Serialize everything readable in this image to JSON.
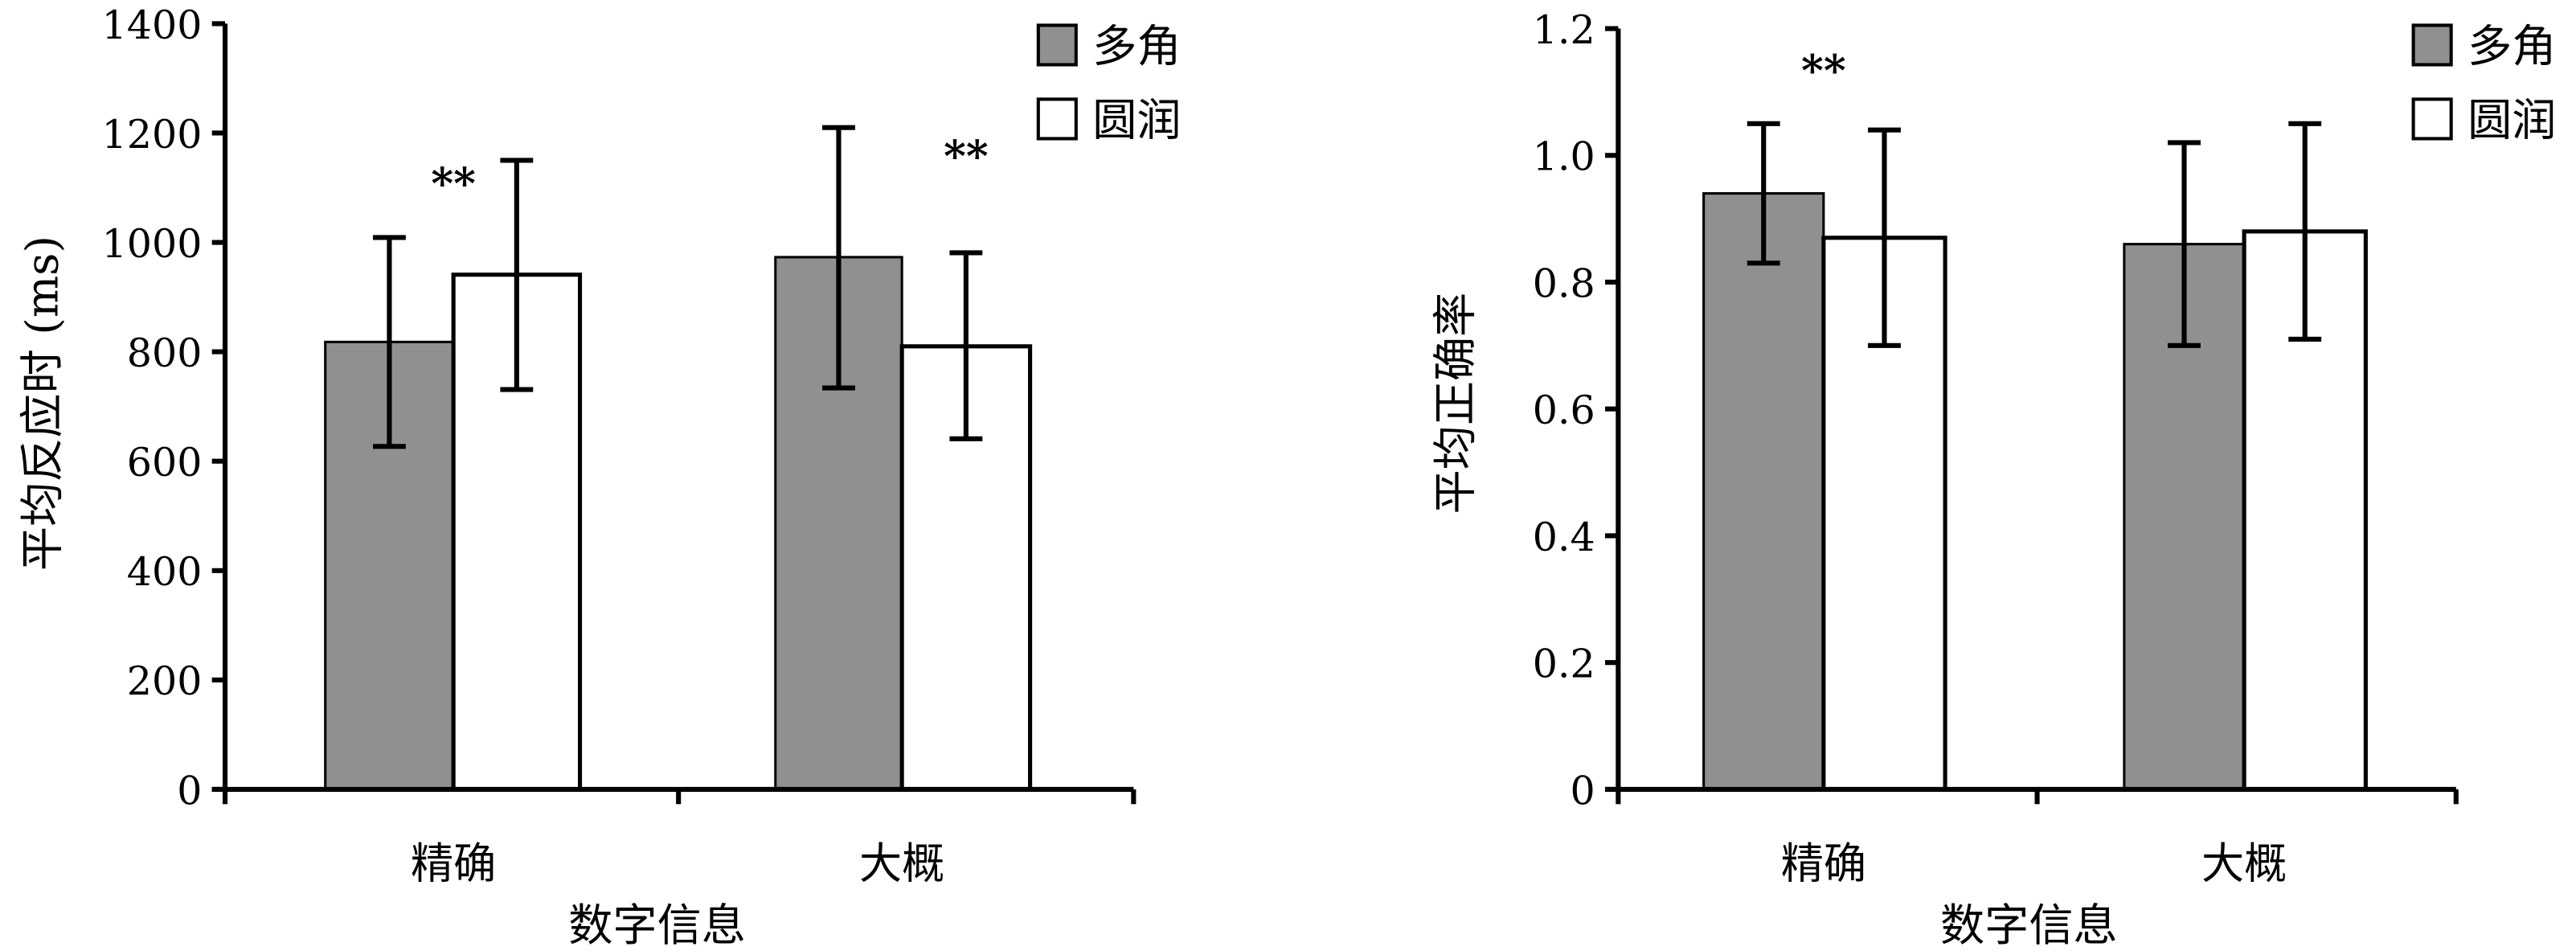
{
  "colors": {
    "polygon": "#909090",
    "round": "#ffffff",
    "stroke": "#000000"
  },
  "chart_data": [
    {
      "type": "bar",
      "title": "",
      "xlabel": "数字信息",
      "ylabel": "平均反应时 (ms)",
      "ylim": [
        0,
        1400
      ],
      "yticks": [
        "0",
        "200",
        "400",
        "600",
        "800",
        "1000",
        "1200",
        "1400"
      ],
      "categories": [
        "精确",
        "大概"
      ],
      "legend": {
        "placement": "top-right",
        "entries": [
          "多角",
          "圆润"
        ]
      },
      "series": [
        {
          "name": "多角",
          "values": [
            818,
            973
          ],
          "err_low": [
            627,
            734
          ],
          "err_high": [
            1009,
            1210
          ]
        },
        {
          "name": "圆润",
          "values": [
            941,
            810
          ],
          "err_low": [
            731,
            641
          ],
          "err_high": [
            1150,
            981
          ]
        }
      ],
      "annotations": [
        {
          "text": "**",
          "category": "精确",
          "between": true,
          "y": 1080
        },
        {
          "text": "**",
          "category": "大概",
          "series": "圆润",
          "y": 1130
        }
      ]
    },
    {
      "type": "bar",
      "title": "",
      "xlabel": "数字信息",
      "ylabel": "平均正确率",
      "ylim": [
        0,
        1.2
      ],
      "yticks": [
        "0",
        "0.2",
        "0.4",
        "0.6",
        "0.8",
        "1.0",
        "1.2"
      ],
      "categories": [
        "精确",
        "大概"
      ],
      "legend": {
        "placement": "top-right",
        "entries": [
          "多角",
          "圆润"
        ]
      },
      "series": [
        {
          "name": "多角",
          "values": [
            0.94,
            0.86
          ],
          "err_low": [
            0.83,
            0.7
          ],
          "err_high": [
            1.05,
            1.02
          ]
        },
        {
          "name": "圆润",
          "values": [
            0.87,
            0.88
          ],
          "err_low": [
            0.7,
            0.71
          ],
          "err_high": [
            1.04,
            1.05
          ]
        }
      ],
      "annotations": [
        {
          "text": "**",
          "category": "精确",
          "between": true,
          "y": 1.11
        }
      ]
    }
  ]
}
